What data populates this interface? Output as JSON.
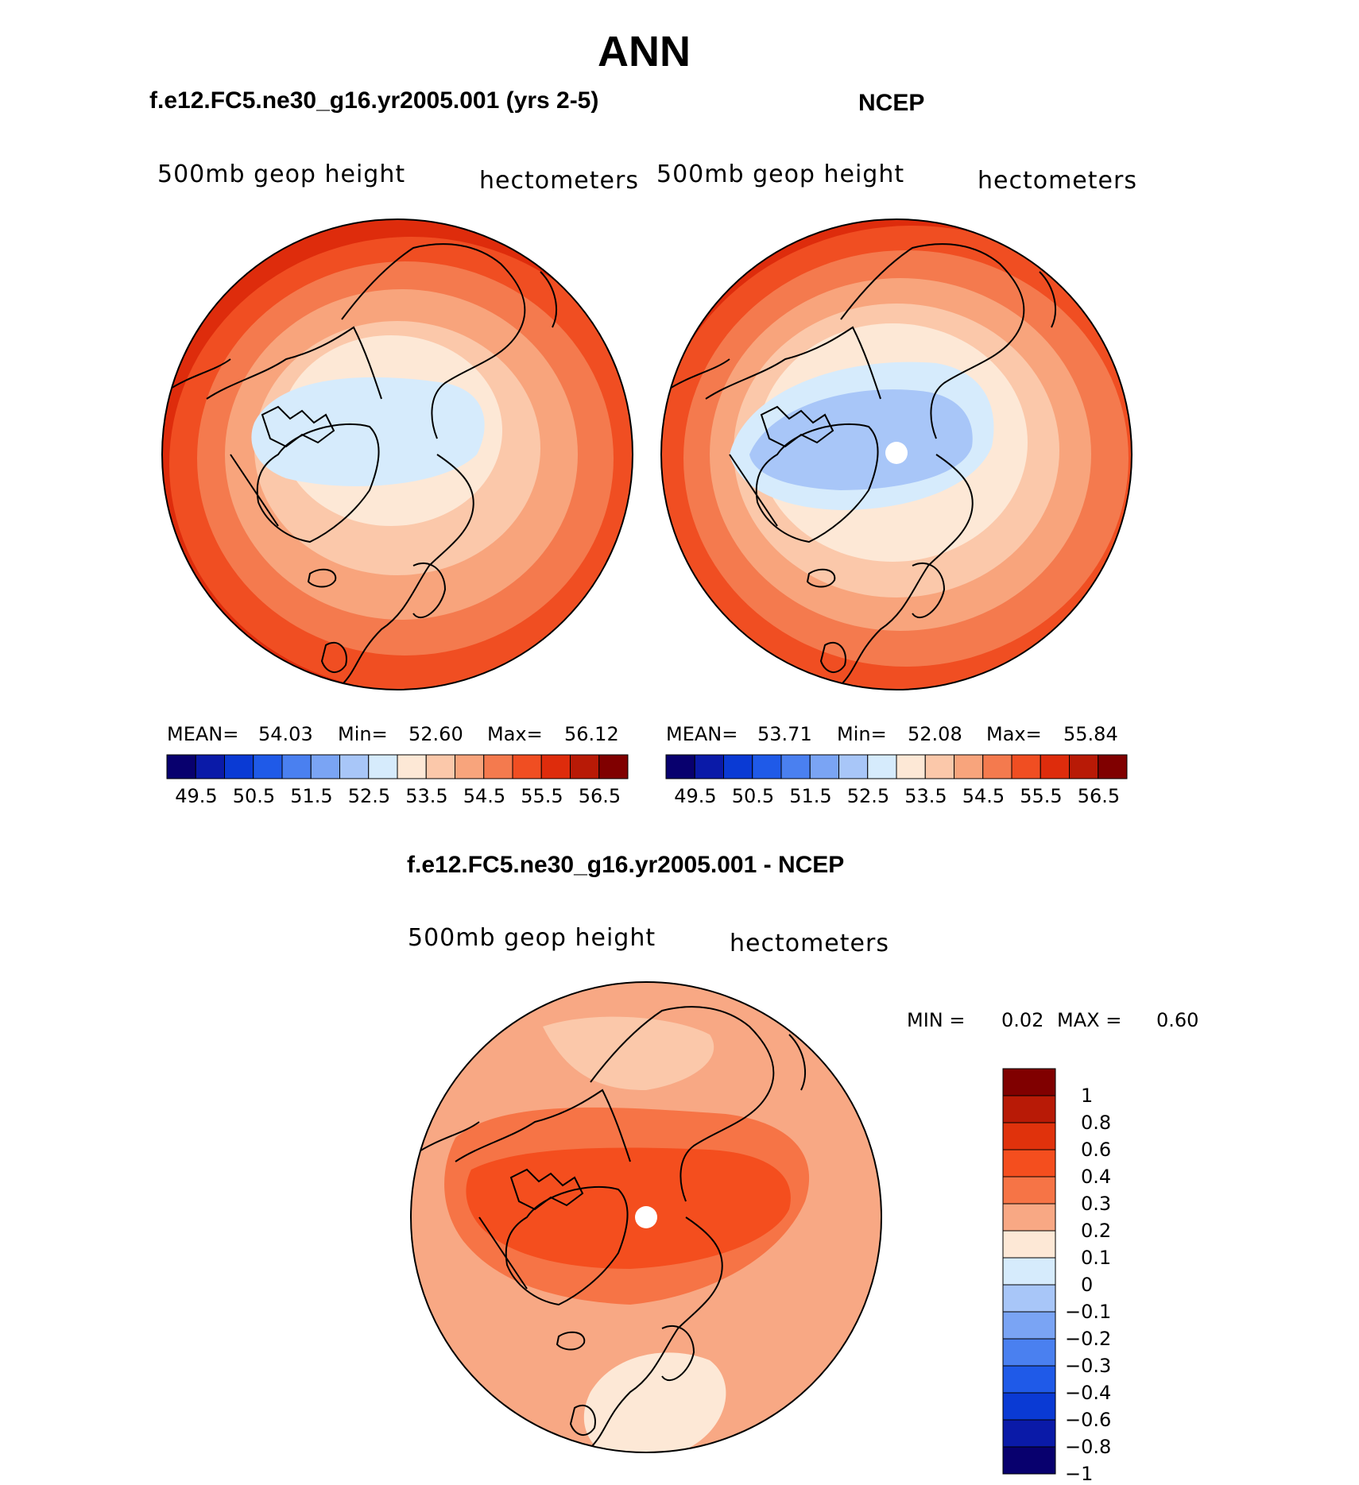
{
  "main_title": "ANN",
  "colors": {
    "abs_scale": [
      "#08006e",
      "#0a1aa8",
      "#0a3ad4",
      "#1f5ae8",
      "#4a80f0",
      "#7aa4f4",
      "#a8c6f8",
      "#d6ebfc",
      "#fde8d6",
      "#fbc8aa",
      "#f8a47c",
      "#f47a4e",
      "#f04e22",
      "#de2c0c",
      "#b81a06",
      "#800000"
    ],
    "diff_scale": [
      "#800000",
      "#b81a06",
      "#e0320c",
      "#f44e1e",
      "#f67446",
      "#f8a884",
      "#fde8d6",
      "#d6ebfc",
      "#a8c6f8",
      "#7aa4f4",
      "#4a80f0",
      "#1f5ae8",
      "#0a3ad4",
      "#0a1aa8",
      "#08006e"
    ]
  },
  "chart_data": [
    {
      "type": "heatmap",
      "projection": "north-polar-stereographic",
      "title": "f.e12.FC5.ne30_g16.yr2005.001 (yrs 2-5)",
      "left_label": "500mb geop height",
      "right_label": "hectometers",
      "stats": {
        "mean_label": "MEAN=",
        "mean": "54.03",
        "min_label": "Min=",
        "min": "52.60",
        "max_label": "Max=",
        "max": "56.12"
      },
      "colorbar": {
        "orientation": "horizontal",
        "tick_labels": [
          "49.5",
          "50.5",
          "51.5",
          "52.5",
          "53.5",
          "54.5",
          "55.5",
          "56.5"
        ]
      }
    },
    {
      "type": "heatmap",
      "projection": "north-polar-stereographic",
      "title": "NCEP",
      "left_label": "500mb geop height",
      "right_label": "hectometers",
      "stats": {
        "mean_label": "MEAN=",
        "mean": "53.71",
        "min_label": "Min=",
        "min": "52.08",
        "max_label": "Max=",
        "max": "55.84"
      },
      "colorbar": {
        "orientation": "horizontal",
        "tick_labels": [
          "49.5",
          "50.5",
          "51.5",
          "52.5",
          "53.5",
          "54.5",
          "55.5",
          "56.5"
        ]
      }
    },
    {
      "type": "heatmap",
      "projection": "north-polar-stereographic",
      "title": "f.e12.FC5.ne30_g16.yr2005.001 - NCEP",
      "left_label": "500mb geop height",
      "right_label": "hectometers",
      "stats": {
        "min_label": "MIN =",
        "min": "0.02",
        "max_label": "MAX =",
        "max": "0.60"
      },
      "colorbar": {
        "orientation": "vertical",
        "tick_labels": [
          "1",
          "0.8",
          "0.6",
          "0.4",
          "0.3",
          "0.2",
          "0.1",
          "0",
          "−0.1",
          "−0.2",
          "−0.3",
          "−0.4",
          "−0.6",
          "−0.8",
          "−1"
        ]
      }
    }
  ]
}
